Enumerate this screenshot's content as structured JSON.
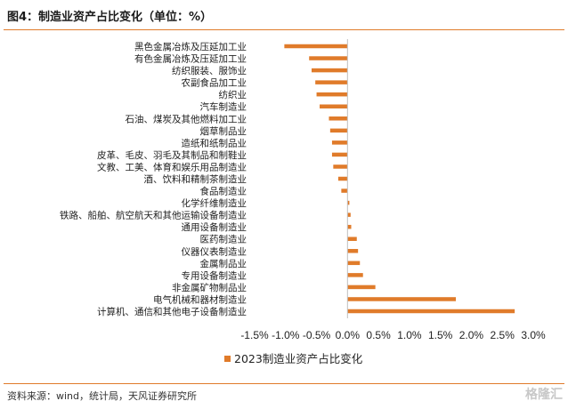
{
  "header": {
    "title": "图4：制造业资产占比变化（单位：%）"
  },
  "footer": {
    "source": "资料来源：wind，统计局，天风证券研究所",
    "watermark": "格隆汇"
  },
  "colors": {
    "bar": "#e07b2a",
    "rule": "#e07b2a",
    "axis": "#bfbfbf"
  },
  "chart_data": {
    "type": "bar",
    "orientation": "horizontal",
    "categories": [
      "黑色金属冶炼及压延加工业",
      "有色金属冶炼及压延加工业",
      "纺织服装、服饰业",
      "农副食品加工业",
      "纺织业",
      "汽车制造业",
      "石油、煤炭及其他燃料加工业",
      "烟草制品业",
      "造纸和纸制品业",
      "皮革、毛皮、羽毛及其制品和制鞋业",
      "文教、工美、体育和娱乐用品制造业",
      "酒、饮料和精制茶制造业",
      "食品制造业",
      "化学纤维制造业",
      "铁路、船舶、航空航天和其他运输设备制造业",
      "通用设备制造业",
      "医药制造业",
      "仪器仪表制造业",
      "金属制品业",
      "专用设备制造业",
      "非金属矿物制品业",
      "电气机械和器材制造业",
      "计算机、通信和其他电子设备制造业"
    ],
    "series": [
      {
        "name": "2023制造业资产占比变化",
        "values": [
          -1.02,
          -0.62,
          -0.58,
          -0.52,
          -0.5,
          -0.45,
          -0.3,
          -0.28,
          -0.25,
          -0.25,
          -0.23,
          -0.15,
          -0.1,
          0.03,
          0.05,
          0.06,
          0.15,
          0.17,
          0.2,
          0.25,
          0.45,
          1.75,
          2.7
        ]
      }
    ],
    "xlim": [
      -1.5,
      3.0
    ],
    "xticks": [
      "-1.5%",
      "-1.0%",
      "-0.5%",
      "0.0%",
      "0.5%",
      "1.0%",
      "1.5%",
      "2.0%",
      "2.5%",
      "3.0%"
    ],
    "xtick_values": [
      -1.5,
      -1.0,
      -0.5,
      0.0,
      0.5,
      1.0,
      1.5,
      2.0,
      2.5,
      3.0
    ],
    "legend_position": "bottom"
  }
}
